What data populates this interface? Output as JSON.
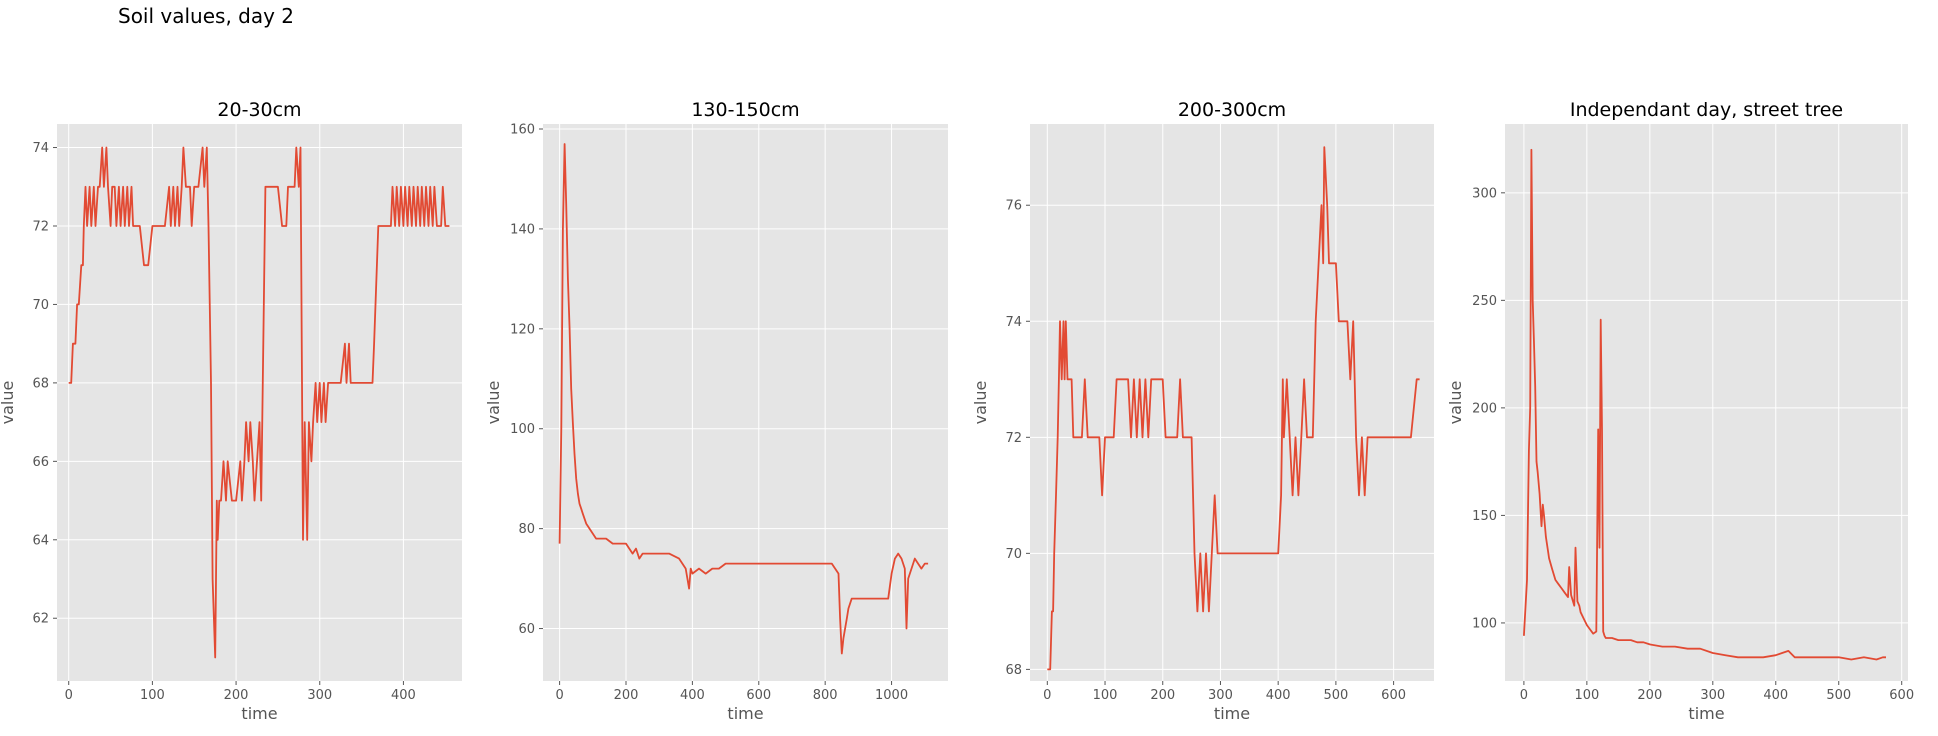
{
  "figure": {
    "suptitle": "Soil values, day 2"
  },
  "style": {
    "line_color": "#E24A33",
    "panel_bg": "#E5E5E5",
    "grid_color": "#FFFFFF",
    "tick_color": "#555555"
  },
  "chart_data": [
    {
      "type": "line",
      "title": "20-30cm",
      "xlabel": "time",
      "ylabel": "value",
      "xlim": [
        -14,
        470
      ],
      "ylim": [
        60.4,
        74.6
      ],
      "xticks": [
        0,
        100,
        200,
        300,
        400
      ],
      "yticks": [
        62,
        64,
        66,
        68,
        70,
        72,
        74
      ],
      "grid": true,
      "series": [
        {
          "x": [
            0,
            3,
            5,
            8,
            10,
            12,
            15,
            17,
            18,
            20,
            22,
            25,
            27,
            30,
            32,
            35,
            37,
            40,
            42,
            45,
            47,
            50,
            52,
            55,
            57,
            60,
            62,
            65,
            67,
            70,
            72,
            75,
            77,
            80,
            85,
            90,
            92,
            95,
            100,
            105,
            110,
            115,
            120,
            122,
            125,
            127,
            130,
            132,
            135,
            137,
            140,
            142,
            145,
            147,
            150,
            155,
            160,
            162,
            165,
            167,
            170,
            172,
            175,
            177,
            178,
            180,
            182,
            185,
            188,
            190,
            195,
            200,
            205,
            207,
            210,
            212,
            215,
            217,
            220,
            222,
            225,
            228,
            230,
            235,
            240,
            245,
            250,
            255,
            260,
            262,
            265,
            268,
            270,
            272,
            275,
            277,
            280,
            282,
            285,
            287,
            290,
            292,
            295,
            297,
            300,
            302,
            305,
            307,
            310,
            315,
            320,
            325,
            330,
            332,
            335,
            337,
            340,
            345,
            350,
            355,
            360,
            363,
            365,
            370,
            375,
            380,
            385,
            387,
            390,
            392,
            395,
            397,
            400,
            402,
            405,
            407,
            410,
            412,
            415,
            417,
            420,
            422,
            425,
            427,
            430,
            432,
            435,
            437,
            440,
            442,
            445,
            447,
            450,
            452,
            455
          ],
          "y": [
            68,
            68,
            69,
            69,
            70,
            70,
            71,
            71,
            72,
            73,
            72,
            73,
            72,
            73,
            72,
            73,
            73,
            74,
            73,
            74,
            73,
            72,
            73,
            73,
            72,
            73,
            72,
            73,
            72,
            73,
            72,
            73,
            72,
            72,
            72,
            71,
            71,
            71,
            72,
            72,
            72,
            72,
            73,
            72,
            73,
            72,
            73,
            72,
            73,
            74,
            73,
            73,
            73,
            72,
            73,
            73,
            74,
            73,
            74,
            72,
            68,
            63,
            61,
            65,
            64,
            65,
            65,
            66,
            65,
            66,
            65,
            65,
            66,
            65,
            66,
            67,
            66,
            67,
            66,
            65,
            66,
            67,
            65,
            73,
            73,
            73,
            73,
            72,
            72,
            73,
            73,
            73,
            73,
            74,
            73,
            74,
            64,
            67,
            64,
            67,
            66,
            67,
            68,
            67,
            68,
            67,
            68,
            67,
            68,
            68,
            68,
            68,
            69,
            68,
            69,
            68,
            68,
            68,
            68,
            68,
            68,
            68,
            69,
            72,
            72,
            72,
            72,
            73,
            72,
            73,
            72,
            73,
            72,
            73,
            72,
            73,
            72,
            73,
            72,
            73,
            72,
            73,
            72,
            73,
            72,
            73,
            72,
            73,
            72,
            72,
            72,
            73,
            72,
            72,
            72
          ]
        }
      ]
    },
    {
      "type": "line",
      "title": "130-150cm",
      "xlabel": "time",
      "ylabel": "value",
      "xlim": [
        -50,
        1170
      ],
      "ylim": [
        49.5,
        161
      ],
      "xticks": [
        0,
        200,
        400,
        600,
        800,
        1000
      ],
      "yticks": [
        60,
        80,
        100,
        120,
        140,
        160
      ],
      "grid": true,
      "series": [
        {
          "x": [
            0,
            5,
            10,
            15,
            20,
            25,
            30,
            35,
            40,
            45,
            50,
            55,
            60,
            65,
            70,
            80,
            90,
            100,
            110,
            120,
            140,
            160,
            180,
            200,
            210,
            220,
            230,
            240,
            250,
            260,
            270,
            300,
            330,
            360,
            370,
            380,
            385,
            390,
            395,
            400,
            420,
            440,
            460,
            480,
            500,
            550,
            600,
            650,
            700,
            750,
            800,
            820,
            840,
            845,
            850,
            855,
            860,
            865,
            870,
            880,
            900,
            920,
            940,
            960,
            980,
            990,
            1000,
            1010,
            1020,
            1030,
            1040,
            1045,
            1050,
            1060,
            1070,
            1080,
            1090,
            1100,
            1110
          ],
          "y": [
            77,
            100,
            140,
            157,
            145,
            130,
            120,
            108,
            101,
            95,
            90,
            87,
            85,
            84,
            83,
            81,
            80,
            79,
            78,
            78,
            78,
            77,
            77,
            77,
            76,
            75,
            76,
            74,
            75,
            75,
            75,
            75,
            75,
            74,
            73,
            72,
            70,
            68,
            72,
            71,
            72,
            71,
            72,
            72,
            73,
            73,
            73,
            73,
            73,
            73,
            73,
            73,
            71,
            62,
            55,
            58,
            60,
            62,
            64,
            66,
            66,
            66,
            66,
            66,
            66,
            66,
            71,
            74,
            75,
            74,
            72,
            60,
            70,
            72,
            74,
            73,
            72,
            73,
            73
          ]
        }
      ]
    },
    {
      "type": "line",
      "title": "200-300cm",
      "xlabel": "time",
      "ylabel": "value",
      "xlim": [
        -30,
        670
      ],
      "ylim": [
        67.8,
        77.4
      ],
      "xticks": [
        0,
        100,
        200,
        300,
        400,
        500,
        600
      ],
      "yticks": [
        68,
        70,
        72,
        74,
        76
      ],
      "grid": true,
      "series": [
        {
          "x": [
            0,
            5,
            8,
            10,
            12,
            15,
            18,
            20,
            22,
            25,
            28,
            30,
            32,
            35,
            38,
            40,
            42,
            45,
            48,
            50,
            55,
            60,
            65,
            70,
            75,
            80,
            85,
            90,
            95,
            100,
            105,
            110,
            115,
            120,
            125,
            130,
            135,
            140,
            145,
            150,
            155,
            160,
            165,
            170,
            175,
            180,
            185,
            190,
            195,
            200,
            205,
            210,
            215,
            220,
            225,
            230,
            235,
            240,
            245,
            250,
            255,
            260,
            265,
            270,
            275,
            280,
            285,
            290,
            295,
            300,
            310,
            320,
            340,
            360,
            380,
            400,
            405,
            408,
            410,
            415,
            420,
            425,
            430,
            435,
            440,
            445,
            450,
            455,
            460,
            465,
            470,
            475,
            478,
            480,
            485,
            488,
            490,
            495,
            500,
            505,
            510,
            515,
            520,
            525,
            530,
            535,
            540,
            545,
            550,
            555,
            560,
            565,
            570,
            575,
            580,
            585,
            590,
            595,
            600,
            610,
            620,
            630,
            640,
            645
          ],
          "y": [
            68,
            68,
            69,
            69,
            70,
            71,
            72,
            73,
            74,
            73,
            74,
            73,
            74,
            73,
            73,
            73,
            73,
            72,
            72,
            72,
            72,
            72,
            73,
            72,
            72,
            72,
            72,
            72,
            71,
            72,
            72,
            72,
            72,
            73,
            73,
            73,
            73,
            73,
            72,
            73,
            72,
            73,
            72,
            73,
            72,
            73,
            73,
            73,
            73,
            73,
            72,
            72,
            72,
            72,
            72,
            73,
            72,
            72,
            72,
            72,
            70,
            69,
            70,
            69,
            70,
            69,
            70,
            71,
            70,
            70,
            70,
            70,
            70,
            70,
            70,
            70,
            71,
            73,
            72,
            73,
            72,
            71,
            72,
            71,
            72,
            73,
            72,
            72,
            72,
            74,
            75,
            76,
            75,
            77,
            76,
            75,
            75,
            75,
            75,
            74,
            74,
            74,
            74,
            73,
            74,
            72,
            71,
            72,
            71,
            72,
            72,
            72,
            72,
            72,
            72,
            72,
            72,
            72,
            72,
            72,
            72,
            72,
            73,
            73
          ]
        }
      ]
    },
    {
      "type": "line",
      "title": "Independant day, street tree",
      "xlabel": "time",
      "ylabel": "value",
      "xlim": [
        -30,
        610
      ],
      "ylim": [
        73,
        332
      ],
      "xticks": [
        0,
        100,
        200,
        300,
        400,
        500,
        600
      ],
      "yticks": [
        100,
        150,
        200,
        250,
        300
      ],
      "grid": true,
      "series": [
        {
          "x": [
            0,
            5,
            8,
            10,
            12,
            14,
            16,
            18,
            20,
            22,
            25,
            28,
            30,
            32,
            35,
            40,
            45,
            50,
            55,
            60,
            65,
            70,
            72,
            75,
            78,
            80,
            82,
            85,
            88,
            90,
            95,
            100,
            105,
            110,
            115,
            118,
            120,
            122,
            124,
            126,
            128,
            130,
            135,
            140,
            150,
            160,
            170,
            180,
            190,
            200,
            220,
            240,
            260,
            280,
            300,
            320,
            340,
            360,
            380,
            400,
            410,
            420,
            430,
            440,
            460,
            480,
            500,
            520,
            540,
            560,
            570,
            575
          ],
          "y": [
            94,
            120,
            180,
            200,
            320,
            250,
            230,
            210,
            175,
            170,
            160,
            145,
            155,
            150,
            140,
            130,
            125,
            120,
            118,
            116,
            114,
            112,
            126,
            113,
            110,
            108,
            135,
            110,
            108,
            105,
            102,
            99,
            97,
            95,
            96,
            190,
            135,
            241,
            190,
            96,
            94,
            93,
            93,
            93,
            92,
            92,
            92,
            91,
            91,
            90,
            89,
            89,
            88,
            88,
            86,
            85,
            84,
            84,
            84,
            85,
            86,
            87,
            84,
            84,
            84,
            84,
            84,
            83,
            84,
            83,
            84,
            84
          ]
        }
      ]
    }
  ]
}
